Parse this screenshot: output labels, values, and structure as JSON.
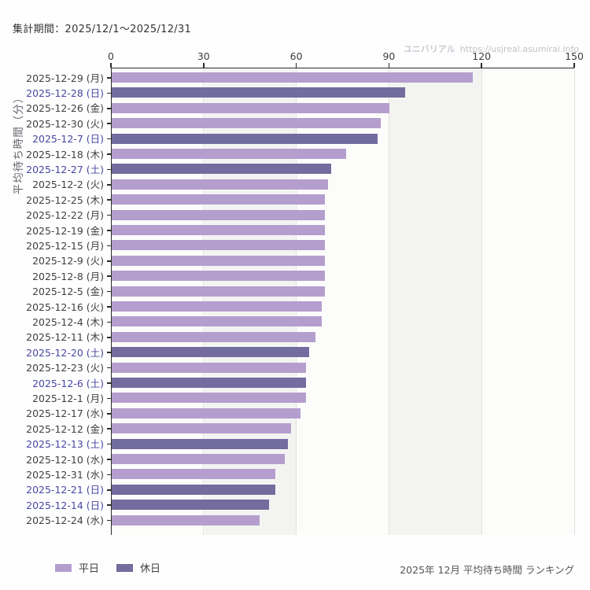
{
  "header": {
    "title": "集計期間：2025/12/1～2025/12/31"
  },
  "watermark": {
    "brand": "ユニバリアル",
    "url": "https://usjreal.asumirai.info"
  },
  "chart_data": {
    "type": "bar",
    "orientation": "horizontal",
    "title": "",
    "xlabel": "",
    "ylabel": "平均待ち時間（分）",
    "xlim": [
      0,
      150
    ],
    "xticks": [
      0,
      30,
      60,
      90,
      120,
      150
    ],
    "grid": true,
    "band_stripes": true,
    "rows": [
      {
        "label": "2025-12-29 (月)",
        "value": 117,
        "type": "weekday"
      },
      {
        "label": "2025-12-28 (日)",
        "value": 95,
        "type": "holiday"
      },
      {
        "label": "2025-12-26 (金)",
        "value": 90,
        "type": "weekday"
      },
      {
        "label": "2025-12-30 (火)",
        "value": 87,
        "type": "weekday"
      },
      {
        "label": "2025-12-7 (日)",
        "value": 86,
        "type": "holiday"
      },
      {
        "label": "2025-12-18 (木)",
        "value": 76,
        "type": "weekday"
      },
      {
        "label": "2025-12-27 (土)",
        "value": 71,
        "type": "holiday"
      },
      {
        "label": "2025-12-2 (火)",
        "value": 70,
        "type": "weekday"
      },
      {
        "label": "2025-12-25 (木)",
        "value": 69,
        "type": "weekday"
      },
      {
        "label": "2025-12-22 (月)",
        "value": 69,
        "type": "weekday"
      },
      {
        "label": "2025-12-19 (金)",
        "value": 69,
        "type": "weekday"
      },
      {
        "label": "2025-12-15 (月)",
        "value": 69,
        "type": "weekday"
      },
      {
        "label": "2025-12-9 (火)",
        "value": 69,
        "type": "weekday"
      },
      {
        "label": "2025-12-8 (月)",
        "value": 69,
        "type": "weekday"
      },
      {
        "label": "2025-12-5 (金)",
        "value": 69,
        "type": "weekday"
      },
      {
        "label": "2025-12-16 (火)",
        "value": 68,
        "type": "weekday"
      },
      {
        "label": "2025-12-4 (木)",
        "value": 68,
        "type": "weekday"
      },
      {
        "label": "2025-12-11 (木)",
        "value": 66,
        "type": "weekday"
      },
      {
        "label": "2025-12-20 (土)",
        "value": 64,
        "type": "holiday"
      },
      {
        "label": "2025-12-23 (火)",
        "value": 63,
        "type": "weekday"
      },
      {
        "label": "2025-12-6 (土)",
        "value": 63,
        "type": "holiday"
      },
      {
        "label": "2025-12-1 (月)",
        "value": 63,
        "type": "weekday"
      },
      {
        "label": "2025-12-17 (水)",
        "value": 61,
        "type": "weekday"
      },
      {
        "label": "2025-12-12 (金)",
        "value": 58,
        "type": "weekday"
      },
      {
        "label": "2025-12-13 (土)",
        "value": 57,
        "type": "holiday"
      },
      {
        "label": "2025-12-10 (水)",
        "value": 56,
        "type": "weekday"
      },
      {
        "label": "2025-12-31 (水)",
        "value": 53,
        "type": "weekday"
      },
      {
        "label": "2025-12-21 (日)",
        "value": 53,
        "type": "holiday"
      },
      {
        "label": "2025-12-14 (日)",
        "value": 51,
        "type": "holiday"
      },
      {
        "label": "2025-12-24 (水)",
        "value": 48,
        "type": "weekday"
      }
    ],
    "colors": {
      "weekday_bar": "#b49ecd",
      "holiday_bar": "#736c9e",
      "weekday_label": "#3f3f3f",
      "holiday_label": "#4a47a3"
    },
    "legend_position": "bottom-left"
  },
  "legend": {
    "items": [
      {
        "label": "平日",
        "type": "weekday"
      },
      {
        "label": "休日",
        "type": "holiday"
      }
    ]
  },
  "footer": {
    "caption": "2025年 12月 平均待ち時間 ランキング"
  }
}
